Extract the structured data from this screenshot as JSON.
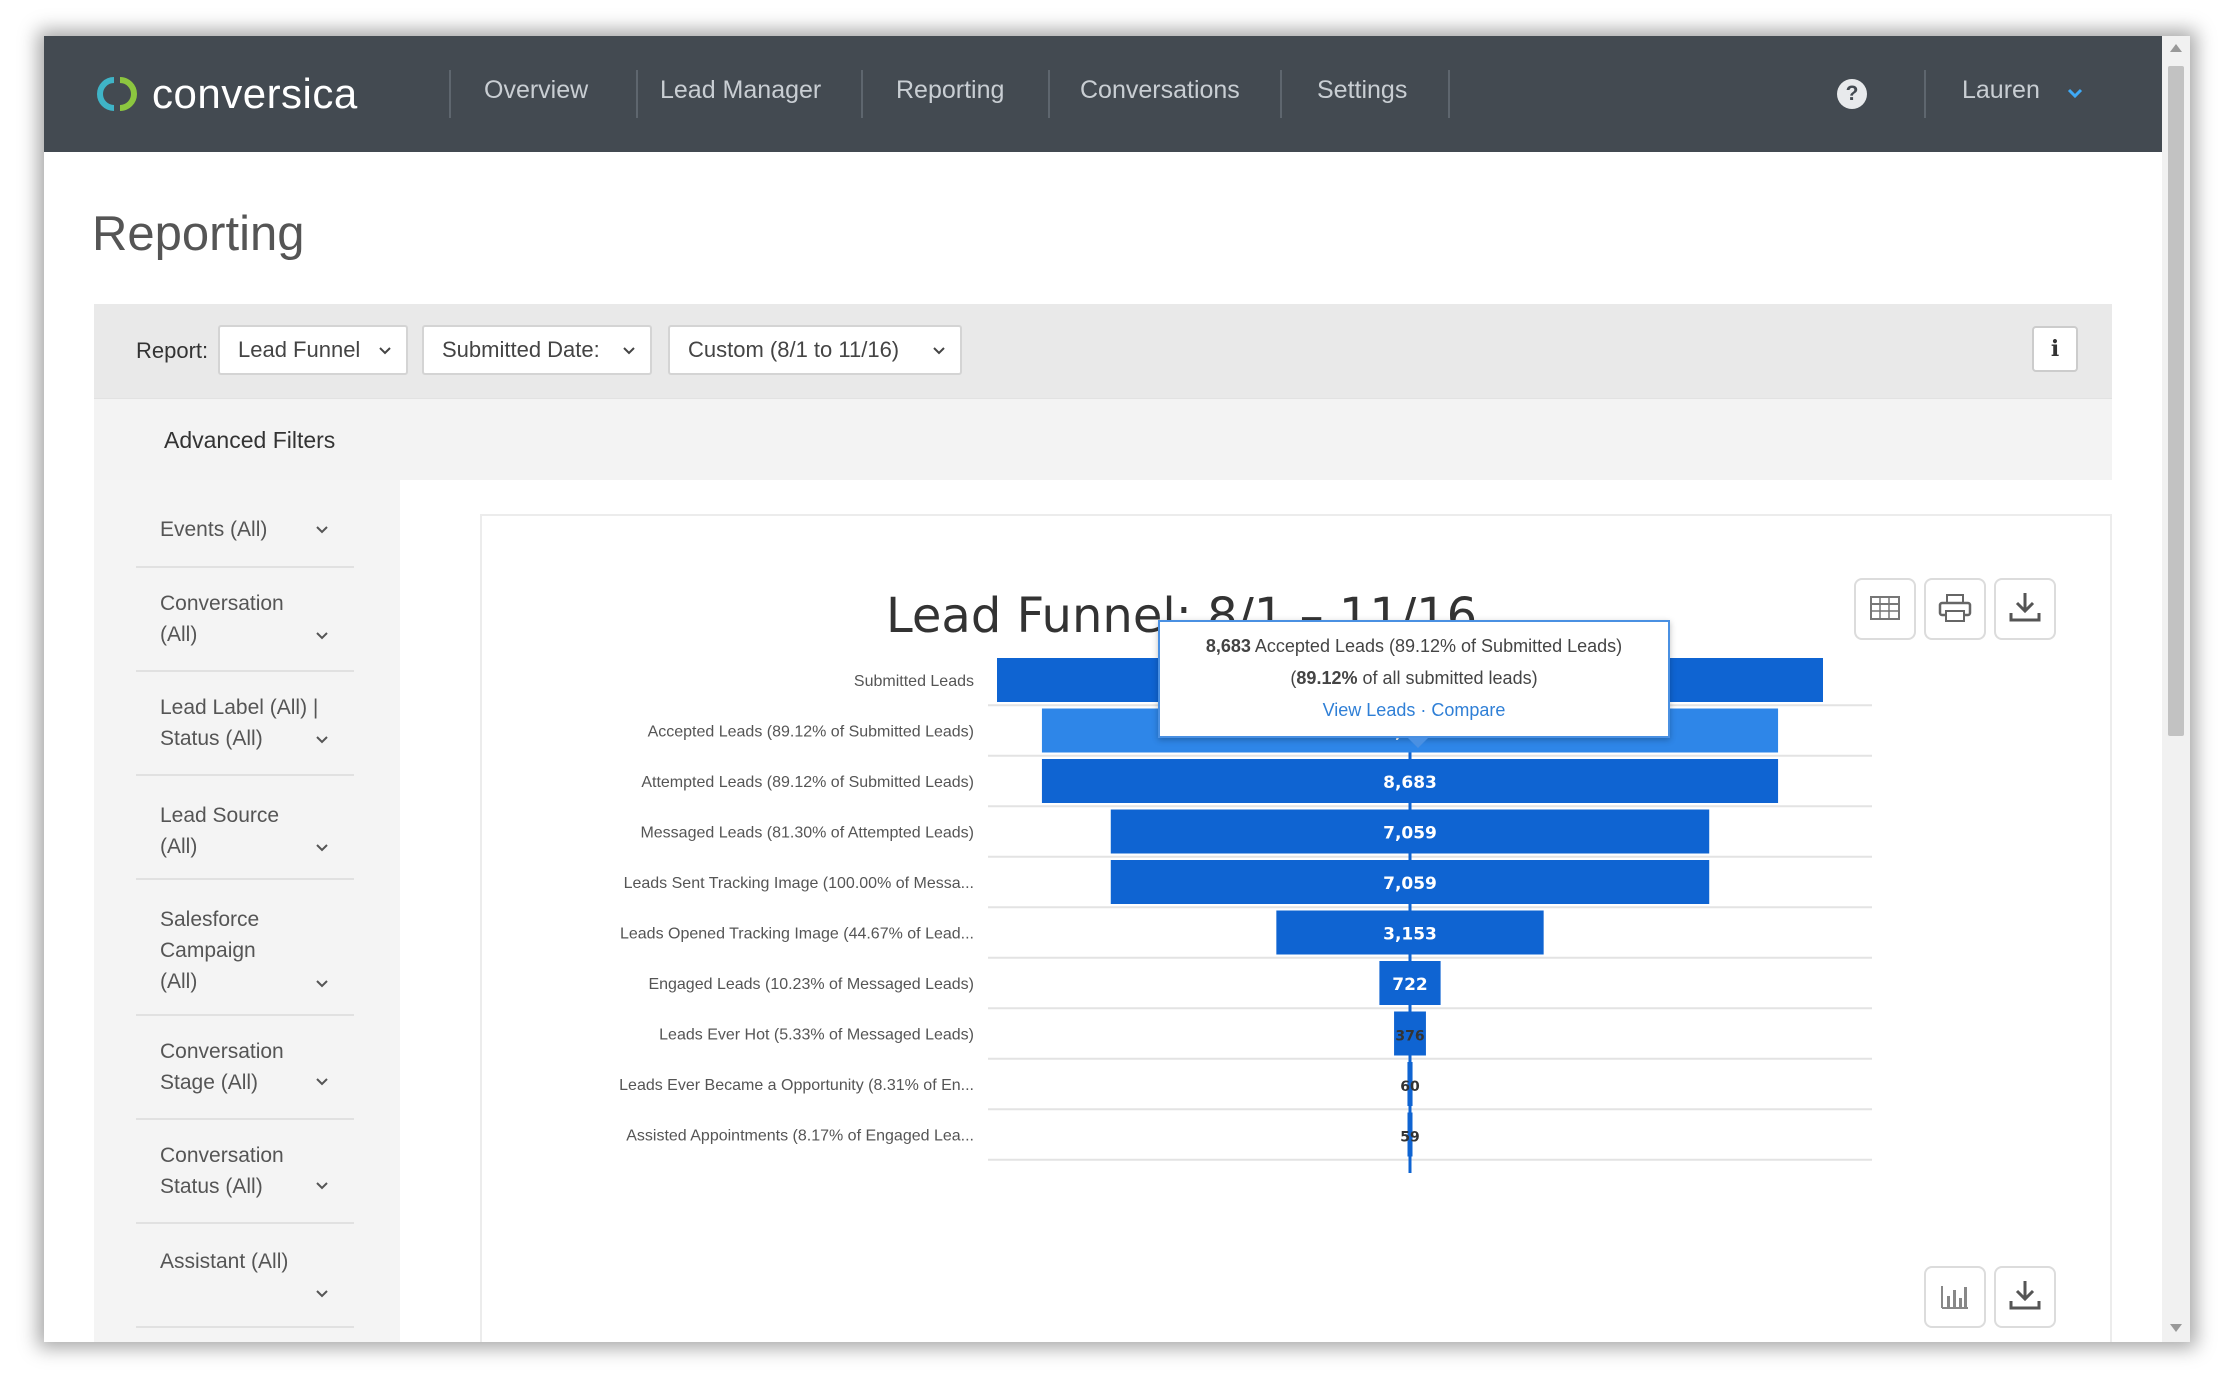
{
  "app": {
    "logo_text": "conversica"
  },
  "nav": {
    "items": [
      "Overview",
      "Lead Manager",
      "Reporting",
      "Conversations",
      "Settings"
    ],
    "help": "?",
    "user": "Lauren"
  },
  "page": {
    "title": "Reporting"
  },
  "report_bar": {
    "label": "Report:",
    "report_type": "Lead Funnel",
    "date_field": "Submitted Date:",
    "date_range": "Custom (8/1 to 11/16)",
    "info": "i"
  },
  "advanced_filters": {
    "title": "Advanced Filters"
  },
  "filters": [
    {
      "lines": [
        "Events (All)"
      ]
    },
    {
      "lines": [
        "Conversation",
        "(All)"
      ]
    },
    {
      "lines": [
        "Lead Label (All) |",
        "Status (All)"
      ]
    },
    {
      "lines": [
        "Lead Source",
        "(All)"
      ]
    },
    {
      "lines": [
        "Salesforce",
        "Campaign",
        "(All)"
      ]
    },
    {
      "lines": [
        "Conversation",
        "Stage (All)"
      ]
    },
    {
      "lines": [
        "Conversation",
        "Status (All)"
      ]
    },
    {
      "lines": [
        "Assistant (All)"
      ]
    }
  ],
  "chart_title": "Lead Funnel: 8/1 – 11/16",
  "tooltip": {
    "value": "8,683",
    "line1_rest": " Accepted Leads (89.12% of Submitted Leads)",
    "pct": "89.12%",
    "line2_rest": " of all submitted leads)",
    "view_leads": "View Leads",
    "compare": "Compare"
  },
  "colors": {
    "bar_primary": "#0f64d2",
    "bar_highlight": "#2e86e8",
    "nav_bg": "#434a51"
  },
  "chart_data": {
    "type": "bar",
    "orientation": "funnel",
    "title": "Lead Funnel: 8/1 – 11/16",
    "categories": [
      "Submitted Leads",
      "Accepted Leads (89.12% of Submitted Leads)",
      "Attempted Leads (89.12% of Submitted Leads)",
      "Messaged Leads (81.30% of Attempted Leads)",
      "Leads Sent Tracking Image (100.00% of Messa...",
      "Leads Opened Tracking Image (44.67% of Lead...",
      "Engaged Leads (10.23% of Messaged Leads)",
      "Leads Ever Hot (5.33% of Messaged Leads)",
      "Leads Ever Became a Opportunity (8.31% of En...",
      "Assisted Appointments (8.17% of Engaged Lea..."
    ],
    "values": [
      9743,
      8683,
      8683,
      7059,
      7059,
      3153,
      722,
      376,
      60,
      59
    ],
    "labels": [
      "",
      "8,683",
      "8,683",
      "7,059",
      "7,059",
      "3,153",
      "722",
      "376",
      "60",
      "59"
    ],
    "highlighted_index": 1
  }
}
